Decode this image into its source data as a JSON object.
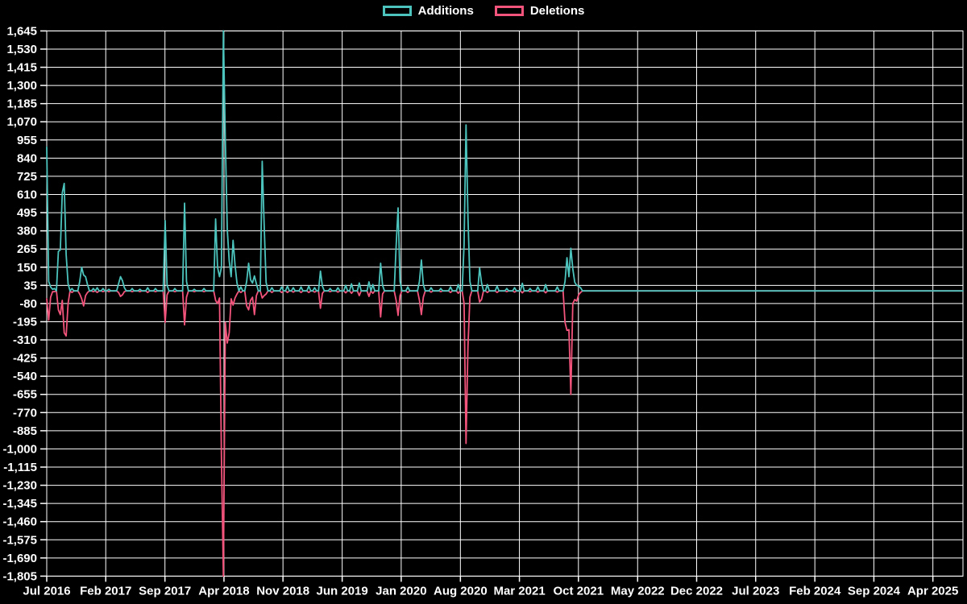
{
  "legend": {
    "additions_label": "Additions",
    "deletions_label": "Deletions"
  },
  "colors": {
    "background": "#000000",
    "grid": "#ffffff",
    "text": "#ffffff",
    "additions": "#4cc4bd",
    "deletions": "#f3547c"
  },
  "chart_data": {
    "type": "line",
    "title": "",
    "xlabel": "",
    "ylabel": "",
    "legend_position": "top-center",
    "grid": true,
    "ylim": [
      -1805,
      1645
    ],
    "y_tick_step": 115,
    "y_axis": {
      "tick_values": [
        1645,
        1530,
        1415,
        1300,
        1185,
        1070,
        955,
        840,
        725,
        610,
        495,
        380,
        265,
        150,
        35,
        -80,
        -195,
        -310,
        -425,
        -540,
        -655,
        -770,
        -885,
        -1000,
        -1115,
        -1230,
        -1345,
        -1460,
        -1575,
        -1690,
        -1805
      ],
      "tick_labels": [
        "1,645",
        "1,530",
        "1,415",
        "1,300",
        "1,185",
        "1,070",
        "955",
        "840",
        "725",
        "610",
        "495",
        "380",
        "265",
        "150",
        "35",
        "-80",
        "-195",
        "-310",
        "-425",
        "-540",
        "-655",
        "-770",
        "-885",
        "-1,000",
        "-1,115",
        "-1,230",
        "-1,345",
        "-1,460",
        "-1,575",
        "-1,690",
        "-1,805"
      ]
    },
    "x_axis": {
      "unit": "weeks since Jul 2016",
      "tick_labels": [
        "Jul 2016",
        "Feb 2017",
        "Sep 2017",
        "Apr 2018",
        "Nov 2018",
        "Jun 2019",
        "Jan 2020",
        "Aug 2020",
        "Mar 2021",
        "Oct 2021",
        "May 2022",
        "Dec 2022",
        "Jul 2023",
        "Feb 2024",
        "Sep 2024",
        "Apr 2025"
      ],
      "tick_weeks": [
        0,
        30.4,
        60.9,
        91.3,
        121.7,
        152.2,
        182.6,
        213.1,
        243.5,
        273.9,
        304.4,
        334.8,
        365.2,
        395.7,
        426.1,
        456.5
      ]
    },
    "total_weeks": 473,
    "default_week_value": [
      0,
      0
    ],
    "series": [
      {
        "name": "Additions",
        "color": "#4cc4bd"
      },
      {
        "name": "Deletions",
        "color": "#f3547c"
      }
    ],
    "weeks_with_activity_format": [
      "week_index",
      "additions",
      "deletions"
    ],
    "weeks_with_activity": [
      [
        0,
        910,
        -50
      ],
      [
        1,
        60,
        -185
      ],
      [
        2,
        25,
        -40
      ],
      [
        3,
        10,
        -5
      ],
      [
        4,
        15,
        -5
      ],
      [
        6,
        250,
        -120
      ],
      [
        7,
        260,
        -150
      ],
      [
        8,
        620,
        -60
      ],
      [
        9,
        680,
        -265
      ],
      [
        10,
        230,
        -285
      ],
      [
        11,
        45,
        -80
      ],
      [
        13,
        15,
        -10
      ],
      [
        17,
        60,
        -20
      ],
      [
        18,
        150,
        -50
      ],
      [
        19,
        100,
        -95
      ],
      [
        20,
        90,
        -30
      ],
      [
        21,
        40,
        -10
      ],
      [
        24,
        15,
        -5
      ],
      [
        26,
        20,
        -10
      ],
      [
        29,
        15,
        -5
      ],
      [
        32,
        10,
        -5
      ],
      [
        37,
        45,
        -10
      ],
      [
        38,
        90,
        -35
      ],
      [
        39,
        65,
        -25
      ],
      [
        40,
        20,
        -5
      ],
      [
        44,
        15,
        -5
      ],
      [
        48,
        10,
        -5
      ],
      [
        52,
        20,
        -10
      ],
      [
        56,
        15,
        -5
      ],
      [
        61,
        445,
        -200
      ],
      [
        62,
        35,
        -25
      ],
      [
        66,
        15,
        -5
      ],
      [
        71,
        555,
        -215
      ],
      [
        72,
        60,
        -40
      ],
      [
        76,
        10,
        -5
      ],
      [
        81,
        15,
        -5
      ],
      [
        87,
        455,
        -60
      ],
      [
        88,
        150,
        -80
      ],
      [
        89,
        90,
        -45
      ],
      [
        90,
        150,
        -1050
      ],
      [
        91,
        1645,
        -1805
      ],
      [
        92,
        955,
        -200
      ],
      [
        93,
        390,
        -330
      ],
      [
        94,
        190,
        -265
      ],
      [
        95,
        90,
        -50
      ],
      [
        96,
        320,
        -90
      ],
      [
        97,
        165,
        -45
      ],
      [
        98,
        50,
        -20
      ],
      [
        100,
        25,
        -10
      ],
      [
        103,
        60,
        -95
      ],
      [
        104,
        175,
        -120
      ],
      [
        105,
        70,
        -60
      ],
      [
        106,
        50,
        -40
      ],
      [
        107,
        95,
        -150
      ],
      [
        108,
        45,
        -30
      ],
      [
        111,
        820,
        -45
      ],
      [
        112,
        420,
        -30
      ],
      [
        113,
        55,
        -20
      ],
      [
        116,
        20,
        -10
      ],
      [
        121,
        25,
        -10
      ],
      [
        124,
        30,
        -10
      ],
      [
        127,
        20,
        -8
      ],
      [
        131,
        25,
        -10
      ],
      [
        135,
        30,
        -10
      ],
      [
        138,
        20,
        -8
      ],
      [
        141,
        125,
        -110
      ],
      [
        142,
        30,
        -15
      ],
      [
        146,
        15,
        -5
      ],
      [
        150,
        20,
        -8
      ],
      [
        154,
        35,
        -12
      ],
      [
        157,
        45,
        -15
      ],
      [
        161,
        50,
        -30
      ],
      [
        166,
        57,
        -35
      ],
      [
        168,
        40,
        -15
      ],
      [
        172,
        175,
        -165
      ],
      [
        173,
        35,
        -20
      ],
      [
        180,
        285,
        -60
      ],
      [
        181,
        525,
        -155
      ],
      [
        182,
        60,
        -30
      ],
      [
        186,
        25,
        -10
      ],
      [
        192,
        60,
        -60
      ],
      [
        193,
        195,
        -150
      ],
      [
        194,
        40,
        -40
      ],
      [
        198,
        20,
        -8
      ],
      [
        203,
        15,
        -5
      ],
      [
        208,
        25,
        -10
      ],
      [
        212,
        40,
        -15
      ],
      [
        215,
        295,
        -80
      ],
      [
        216,
        1050,
        -965
      ],
      [
        217,
        465,
        -350
      ],
      [
        218,
        60,
        -40
      ],
      [
        223,
        145,
        -70
      ],
      [
        224,
        50,
        -55
      ],
      [
        227,
        40,
        -10
      ],
      [
        232,
        30,
        -10
      ],
      [
        237,
        15,
        -5
      ],
      [
        241,
        20,
        -8
      ],
      [
        245,
        48,
        -12
      ],
      [
        249,
        15,
        -5
      ],
      [
        253,
        25,
        -8
      ],
      [
        257,
        40,
        -12
      ],
      [
        263,
        25,
        -8
      ],
      [
        267,
        60,
        -200
      ],
      [
        268,
        210,
        -250
      ],
      [
        269,
        90,
        -245
      ],
      [
        270,
        270,
        -655
      ],
      [
        271,
        140,
        -80
      ],
      [
        272,
        55,
        -55
      ],
      [
        273,
        35,
        -65
      ],
      [
        274,
        30,
        -25
      ],
      [
        275,
        20,
        -10
      ]
    ]
  }
}
